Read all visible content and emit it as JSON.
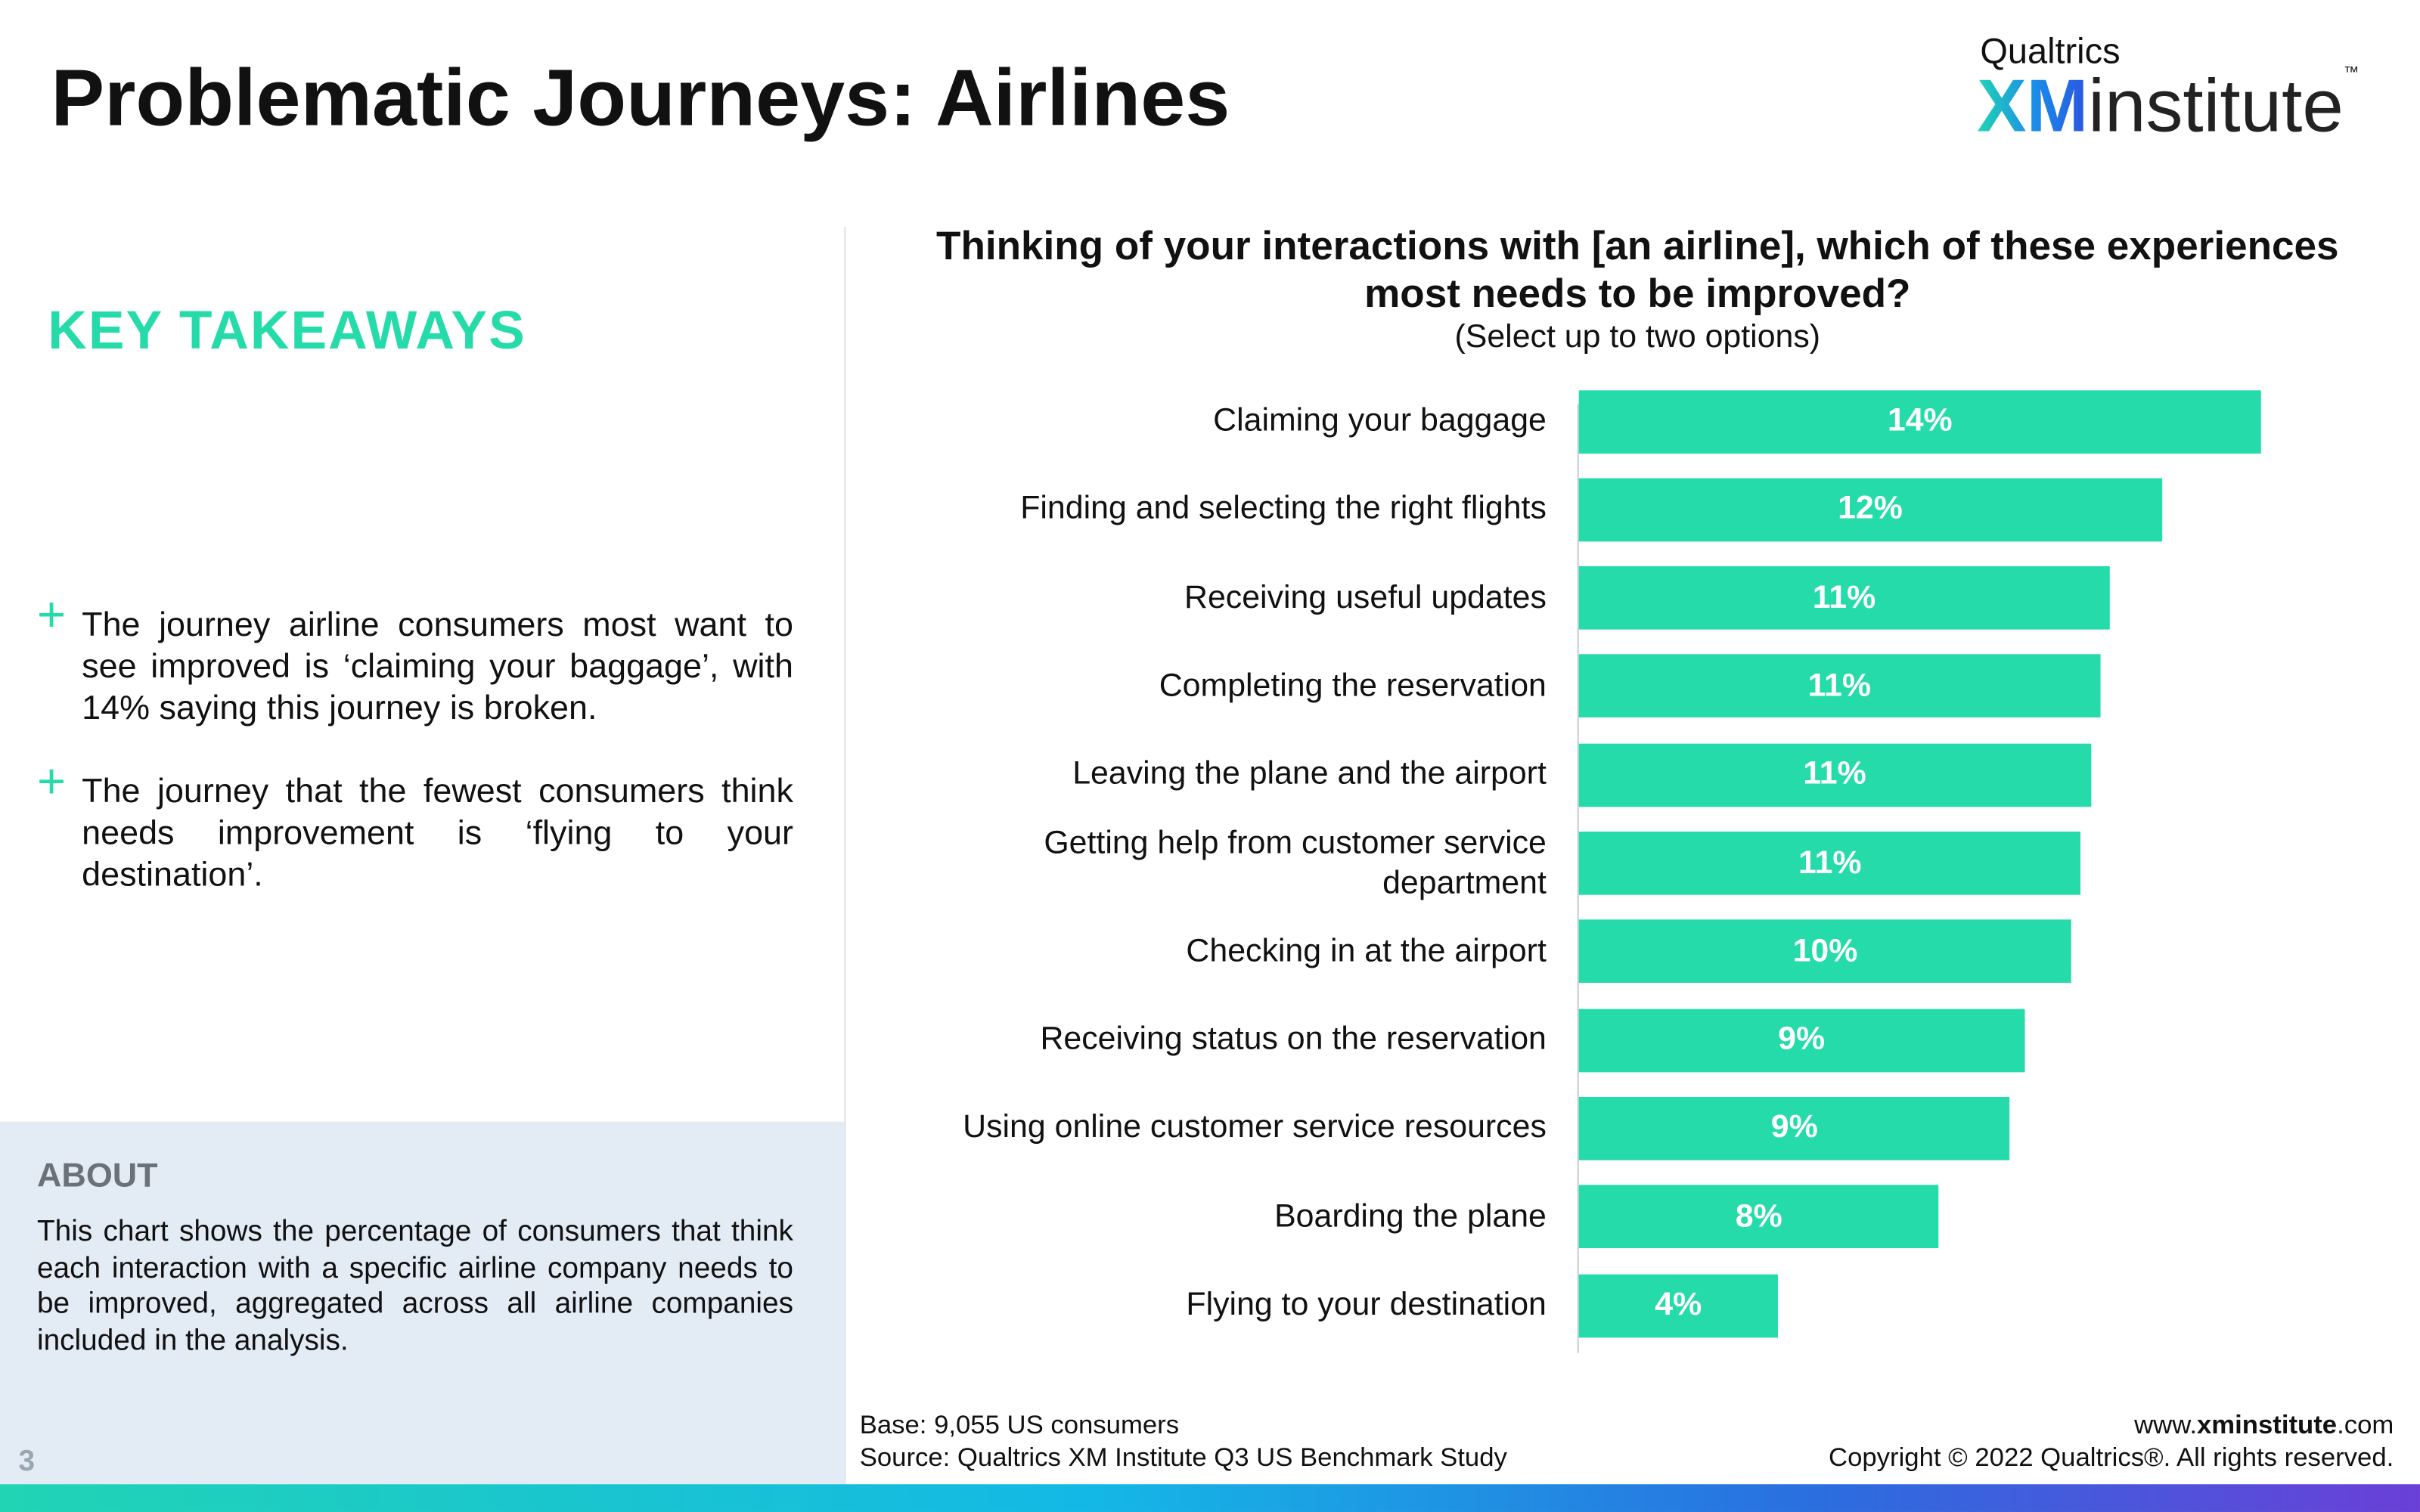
{
  "header": {
    "title": "Problematic Journeys: Airlines",
    "logo": {
      "brand": "Qualtrics",
      "xm": "XM",
      "institute": "institute",
      "tm": "™"
    }
  },
  "takeaways": {
    "heading": "KEY TAKEAWAYS",
    "items": [
      "The journey airline consumers most want to see improved is ‘claiming your baggage’, with 14% saying this journey is broken.",
      "The journey that the fewest consumers think needs improvement is ‘flying to your destination’."
    ]
  },
  "about": {
    "heading": "ABOUT",
    "text": "This chart shows the percentage of consumers that think each interaction with a specific airline company needs to be improved, aggregated across all airline companies included in the analysis."
  },
  "page_number": "3",
  "chart_data": {
    "type": "hbar",
    "title": "Thinking of your interactions with [an airline], which of these experiences most needs to be improved?",
    "subtitle": "(Select up to two options)",
    "color": "#25dbaa",
    "categories": [
      "Claiming your baggage",
      "Finding and selecting the right flights",
      "Receiving useful updates",
      "Completing the reservation",
      "Leaving the plane and the airport",
      "Getting help from customer service department",
      "Checking in at the airport",
      "Receiving status on the reservation",
      "Using online customer service resources",
      "Boarding the plane",
      "Flying to your destination"
    ],
    "values": [
      14.4,
      12.3,
      11.2,
      11.0,
      10.8,
      10.6,
      10.4,
      9.4,
      9.1,
      7.6,
      4.2
    ],
    "value_labels": [
      "14%",
      "12%",
      "11%",
      "11%",
      "11%",
      "11%",
      "10%",
      "9%",
      "9%",
      "8%",
      "4%"
    ]
  },
  "footer": {
    "base": "Base: 9,055 US consumers",
    "source": "Source: Qualtrics XM Institute Q3 US Benchmark Study",
    "site_pre": "www.",
    "site_bold": "xminstitute",
    "site_post": ".com",
    "copyright": "Copyright © 2022 Qualtrics®. All rights reserved."
  }
}
